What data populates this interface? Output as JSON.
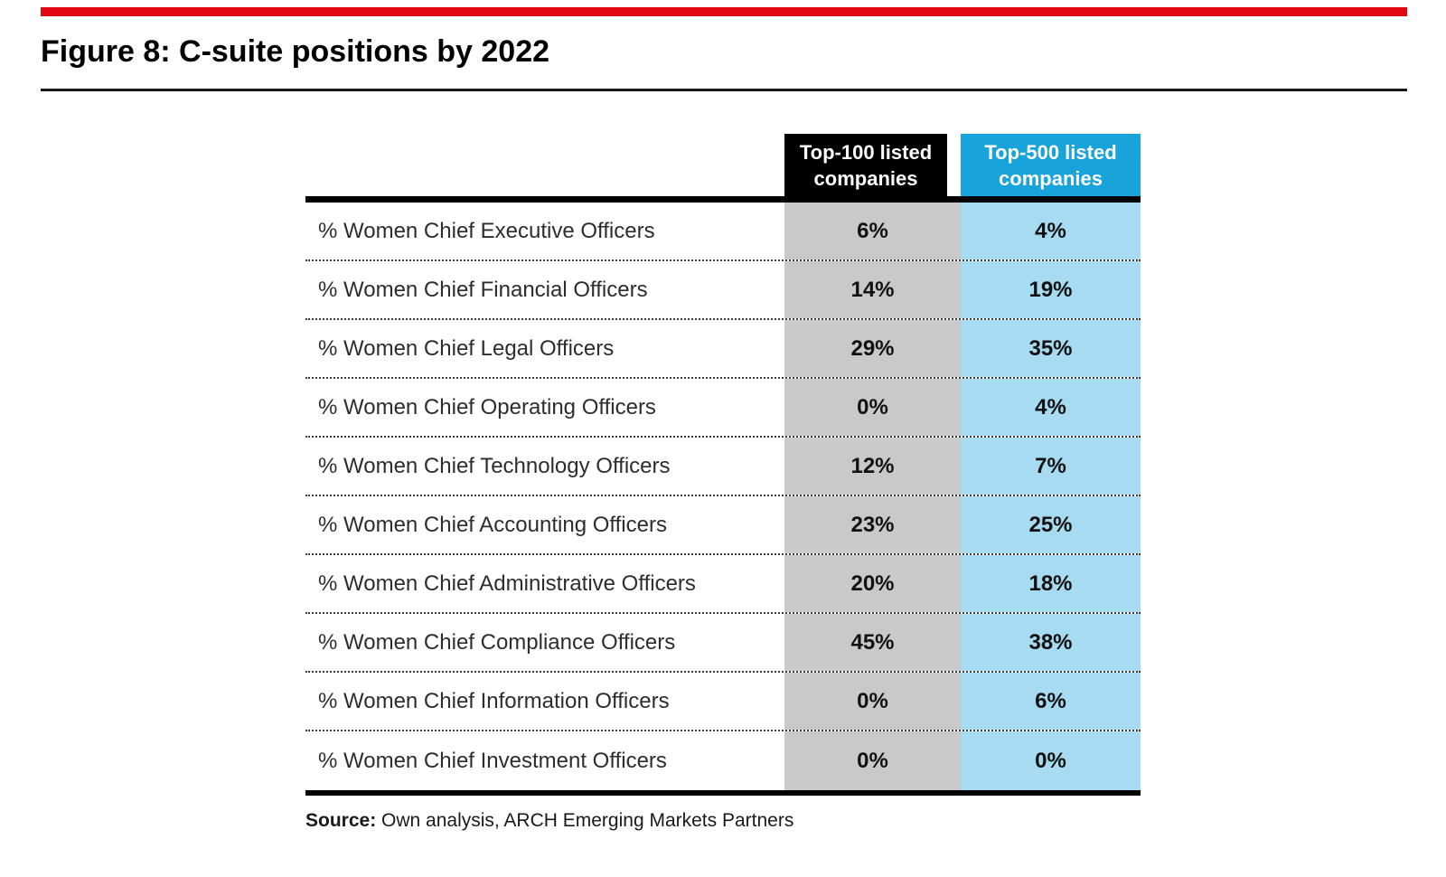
{
  "figure": {
    "title": "Figure 8: C-suite positions by 2022",
    "source_label": "Source:",
    "source_text": " Own analysis, ARCH Emerging Markets Partners"
  },
  "colors": {
    "accent_red": "#E30613",
    "header_top100_bg": "#000000",
    "header_top500_bg": "#18A4DA",
    "column_top100_bg": "#C9C9C9",
    "column_top500_bg": "#A6DBF1"
  },
  "table": {
    "header_top100": "Top-100 listed companies",
    "header_top500": "Top-500 listed companies"
  },
  "chart_data": {
    "type": "table",
    "title": "Figure 8: C-suite positions by 2022",
    "column_headers": [
      "Top-100 listed companies",
      "Top-500 listed companies"
    ],
    "rows": [
      {
        "label": "% Women Chief Executive Officers",
        "top100": "6%",
        "top500": "4%"
      },
      {
        "label": "% Women Chief Financial Officers",
        "top100": "14%",
        "top500": "19%"
      },
      {
        "label": "% Women Chief Legal Officers",
        "top100": "29%",
        "top500": "35%"
      },
      {
        "label": "% Women Chief Operating Officers",
        "top100": "0%",
        "top500": "4%"
      },
      {
        "label": "% Women Chief Technology Officers",
        "top100": "12%",
        "top500": "7%"
      },
      {
        "label": "% Women Chief Accounting Officers",
        "top100": "23%",
        "top500": "25%"
      },
      {
        "label": "% Women Chief Administrative Officers",
        "top100": "20%",
        "top500": "18%"
      },
      {
        "label": "% Women Chief Compliance Officers",
        "top100": "45%",
        "top500": "38%"
      },
      {
        "label": "% Women Chief Information Officers",
        "top100": "0%",
        "top500": "6%"
      },
      {
        "label": "% Women Chief Investment Officers",
        "top100": "0%",
        "top500": "0%"
      }
    ],
    "source": "Source: Own analysis, ARCH Emerging Markets Partners"
  }
}
